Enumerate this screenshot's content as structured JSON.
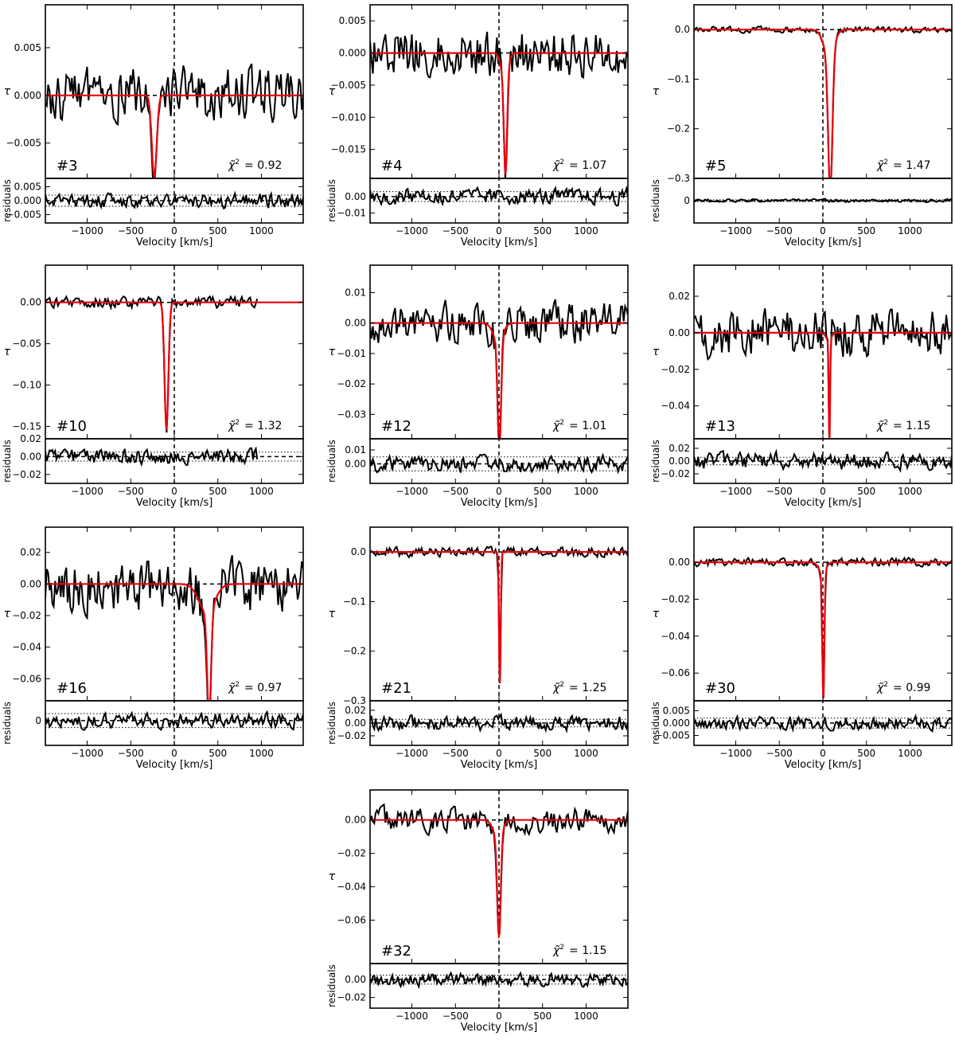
{
  "figure": {
    "x_axis_label": "Velocity [km/s]",
    "y_axis_label": "τ",
    "residual_axis_label": "residuals",
    "chi_label": "χ̃",
    "chi_sup": "2",
    "colors": {
      "data": "#000000",
      "fit": "#e8000b",
      "axes": "#000000"
    }
  },
  "chart_data": [
    {
      "type": "line",
      "id": "#3",
      "chi2": "= 0.92",
      "xlim": [
        -1480,
        1480
      ],
      "ylim": [
        -0.0087,
        0.0095
      ],
      "yticks": [
        -0.005,
        0.0,
        0.005
      ],
      "yticklabels": [
        "−0.005",
        "0.000",
        "0.005"
      ],
      "res_ylim": [
        -0.008,
        0.008
      ],
      "res_yticks": [
        -0.005,
        0.0,
        0.005
      ],
      "res_yticklabels": [
        "−0.005",
        "0.000",
        "0.005"
      ],
      "xticks": [
        -1000,
        -500,
        0,
        500,
        1000
      ],
      "xticklabels": [
        "−1000",
        "−500",
        "0",
        "500",
        "1000"
      ],
      "fit": {
        "center": -230,
        "depth": 0.0085,
        "sigma": 28
      },
      "noise_rms": 0.0024,
      "res_rms": 0.0022,
      "band": 0.002,
      "seed": 3
    },
    {
      "type": "line",
      "id": "#4",
      "chi2": "= 1.07",
      "xlim": [
        -1480,
        1480
      ],
      "ylim": [
        -0.0195,
        0.0075
      ],
      "yticks": [
        -0.015,
        -0.01,
        -0.005,
        0.0,
        0.005
      ],
      "yticklabels": [
        "−0.015",
        "−0.010",
        "−0.005",
        "0.000",
        "0.005"
      ],
      "res_ylim": [
        -0.016,
        0.011
      ],
      "res_yticks": [
        -0.01,
        0.0
      ],
      "res_yticklabels": [
        "−0.01",
        "0.00"
      ],
      "xticks": [
        -1000,
        -500,
        0,
        500,
        1000
      ],
      "xticklabels": [
        "−1000",
        "−500",
        "0",
        "500",
        "1000"
      ],
      "fit": {
        "center": 75,
        "depth": 0.0155,
        "sigma": 18,
        "wing_depth": 0.0035,
        "wing_sigma": 40
      },
      "noise_rms": 0.0032,
      "res_rms": 0.004,
      "band": 0.003,
      "seed": 4
    },
    {
      "type": "line",
      "id": "#5",
      "chi2": "= 1.47",
      "xlim": [
        -1480,
        1480
      ],
      "ylim": [
        -0.3,
        0.05
      ],
      "yticks": [
        -0.3,
        -0.2,
        -0.1,
        0.0
      ],
      "yticklabels": [
        "−0.3",
        "−0.2",
        "−0.1",
        "0.0"
      ],
      "res_ylim": [
        -0.05,
        0.05
      ],
      "res_yticks": [
        0.0
      ],
      "res_yticklabels": [
        "0"
      ],
      "xticks": [
        -1000,
        -500,
        0,
        500,
        1000
      ],
      "xticklabels": [
        "−1000",
        "−500",
        "0",
        "500",
        "1000"
      ],
      "fit": {
        "center": 85,
        "depth": 0.28,
        "sigma": 24,
        "wing_depth": 0.05,
        "wing_sigma": 60
      },
      "noise_rms": 0.005,
      "res_rms": 0.003,
      "band": 0.002,
      "seed": 5
    },
    {
      "type": "line",
      "id": "#10",
      "chi2": "= 1.32",
      "xlim": [
        -1480,
        1480
      ],
      "ylim": [
        -0.165,
        0.045
      ],
      "yticks": [
        -0.15,
        -0.1,
        -0.05,
        0.0
      ],
      "yticklabels": [
        "−0.15",
        "−0.10",
        "−0.05",
        "0.00"
      ],
      "res_ylim": [
        -0.03,
        0.02
      ],
      "res_yticks": [
        -0.02,
        0.0,
        0.02
      ],
      "res_yticklabels": [
        "−0.02",
        "0.00",
        "0.02"
      ],
      "xticks": [
        -1000,
        -500,
        0,
        500,
        1000
      ],
      "xticklabels": [
        "−1000",
        "−500",
        "0",
        "500",
        "1000"
      ],
      "fit": {
        "center": -90,
        "depth": 0.153,
        "sigma": 22
      },
      "noise_rms": 0.006,
      "res_rms": 0.007,
      "band": 0.005,
      "data_xmax": 960,
      "seed": 10
    },
    {
      "type": "line",
      "id": "#12",
      "chi2": "= 1.01",
      "xlim": [
        -1480,
        1480
      ],
      "ylim": [
        -0.038,
        0.019
      ],
      "yticks": [
        -0.03,
        -0.02,
        -0.01,
        0.0,
        0.01
      ],
      "yticklabels": [
        "−0.03",
        "−0.02",
        "−0.01",
        "0.00",
        "0.01"
      ],
      "res_ylim": [
        -0.014,
        0.018
      ],
      "res_yticks": [
        0.0,
        0.01
      ],
      "res_yticklabels": [
        "0.00",
        "0.01"
      ],
      "xticks": [
        -1000,
        -500,
        0,
        500,
        1000
      ],
      "xticklabels": [
        "−1000",
        "−500",
        "0",
        "500",
        "1000"
      ],
      "fit": {
        "center": 5,
        "depth": 0.035,
        "sigma": 20,
        "wing_depth": 0.006,
        "wing_sigma": 55
      },
      "noise_rms": 0.0055,
      "res_rms": 0.005,
      "band": 0.005,
      "seed": 12
    },
    {
      "type": "line",
      "id": "#13",
      "chi2": "= 1.15",
      "xlim": [
        -1480,
        1480
      ],
      "ylim": [
        -0.058,
        0.037
      ],
      "yticks": [
        -0.04,
        -0.02,
        0.0,
        0.02
      ],
      "yticklabels": [
        "−0.04",
        "−0.02",
        "0.00",
        "0.02"
      ],
      "res_ylim": [
        -0.035,
        0.035
      ],
      "res_yticks": [
        -0.02,
        0.0,
        0.02
      ],
      "res_yticklabels": [
        "−0.02",
        "0.00",
        "0.02"
      ],
      "xticks": [
        -1000,
        -500,
        0,
        500,
        1000
      ],
      "xticklabels": [
        "−1000",
        "−500",
        "0",
        "500",
        "1000"
      ],
      "fit": {
        "center": 75,
        "depth": 0.056,
        "sigma": 8,
        "wing_depth": 0.004,
        "wing_sigma": 30
      },
      "noise_rms": 0.011,
      "res_rms": 0.011,
      "band": 0.006,
      "seed": 13
    },
    {
      "type": "line",
      "id": "#16",
      "chi2": "= 0.97",
      "xlim": [
        -1480,
        1480
      ],
      "ylim": [
        -0.074,
        0.036
      ],
      "yticks": [
        -0.06,
        -0.04,
        -0.02,
        0.0,
        0.02
      ],
      "yticklabels": [
        "−0.06",
        "−0.04",
        "−0.02",
        "0.00",
        "0.02"
      ],
      "res_ylim": [
        -0.05,
        0.04
      ],
      "res_yticks": [
        0.0
      ],
      "res_yticklabels": [
        "0"
      ],
      "xticks": [
        -1000,
        -500,
        0,
        500,
        1000
      ],
      "xticklabels": [
        "−1000",
        "−500",
        "0",
        "500",
        "1000"
      ],
      "fit": {
        "center": 400,
        "depth": 0.068,
        "sigma": 22,
        "wing_depth": 0.018,
        "wing_sigma": 90
      },
      "noise_rms": 0.015,
      "res_rms": 0.013,
      "band": 0.014,
      "seed": 16
    },
    {
      "type": "line",
      "id": "#21",
      "chi2": "= 1.25",
      "xlim": [
        -1480,
        1480
      ],
      "ylim": [
        -0.3,
        0.05
      ],
      "yticks": [
        -0.3,
        -0.2,
        -0.1,
        0.0
      ],
      "yticklabels": [
        "−0.3",
        "−0.2",
        "−0.1",
        "0.0"
      ],
      "res_ylim": [
        -0.035,
        0.035
      ],
      "res_yticks": [
        -0.02,
        0.0,
        0.02
      ],
      "res_yticklabels": [
        "−0.02",
        "0.00",
        "0.02"
      ],
      "xticks": [
        -1000,
        -500,
        0,
        500,
        1000
      ],
      "xticklabels": [
        "−1000",
        "−500",
        "0",
        "500",
        "1000"
      ],
      "fit": {
        "center": 10,
        "depth": 0.265,
        "sigma": 10
      },
      "noise_rms": 0.008,
      "res_rms": 0.01,
      "band": 0.006,
      "seed": 21
    },
    {
      "type": "line",
      "id": "#30",
      "chi2": "= 0.99",
      "xlim": [
        -1480,
        1480
      ],
      "ylim": [
        -0.075,
        0.019
      ],
      "yticks": [
        -0.06,
        -0.04,
        -0.02,
        0.0
      ],
      "yticklabels": [
        "−0.06",
        "−0.04",
        "−0.02",
        "0.00"
      ],
      "res_ylim": [
        -0.009,
        0.009
      ],
      "res_yticks": [
        -0.005,
        0.0,
        0.005
      ],
      "res_yticklabels": [
        "−0.005",
        "0.000",
        "0.005"
      ],
      "xticks": [
        -1000,
        -500,
        0,
        500,
        1000
      ],
      "xticklabels": [
        "−1000",
        "−500",
        "0",
        "500",
        "1000"
      ],
      "fit": {
        "center": 5,
        "depth": 0.068,
        "sigma": 12,
        "wing_depth": 0.006,
        "wing_sigma": 40
      },
      "noise_rms": 0.0018,
      "res_rms": 0.0022,
      "band": 0.002,
      "seed": 30
    },
    {
      "type": "line",
      "id": "#32",
      "chi2": "= 1.15",
      "xlim": [
        -1480,
        1480
      ],
      "ylim": [
        -0.086,
        0.018
      ],
      "yticks": [
        -0.06,
        -0.04,
        -0.02,
        0.0
      ],
      "yticklabels": [
        "−0.06",
        "−0.04",
        "−0.02",
        "0.00"
      ],
      "res_ylim": [
        -0.032,
        0.018
      ],
      "res_yticks": [
        -0.02,
        0.0
      ],
      "res_yticklabels": [
        "−0.02",
        "0.00"
      ],
      "xticks": [
        -1000,
        -500,
        0,
        500,
        1000
      ],
      "xticklabels": [
        "−1000",
        "−500",
        "0",
        "500",
        "1000"
      ],
      "fit": {
        "center": 0,
        "depth": 0.06,
        "sigma": 20,
        "wing_depth": 0.01,
        "wing_sigma": 50
      },
      "noise_rms": 0.006,
      "res_rms": 0.006,
      "band": 0.005,
      "seed": 32
    }
  ]
}
